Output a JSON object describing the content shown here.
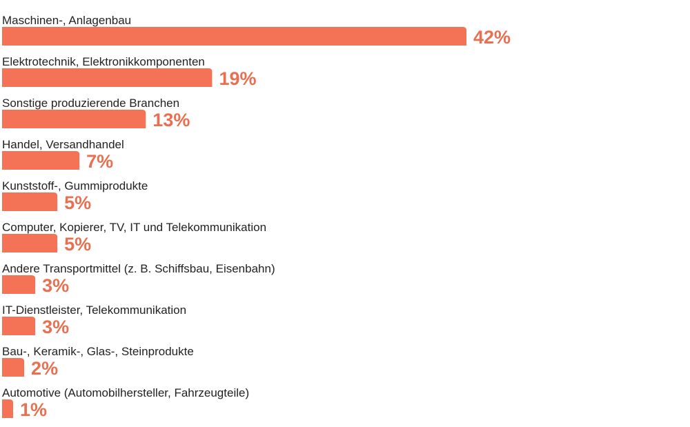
{
  "chart_data": {
    "type": "bar",
    "orientation": "horizontal",
    "categories": [
      "Maschinen-, Anlagenbau",
      "Elektrotechnik, Elektronikkomponenten",
      "Sonstige produzierende Branchen",
      "Handel, Versandhandel",
      "Kunststoff-, Gummiprodukte",
      "Computer, Kopierer, TV, IT und Telekommunikation",
      "Andere Transportmittel (z. B. Schiffsbau, Eisenbahn)",
      "IT-Dienstleister, Telekommunikation",
      "Bau-, Keramik-, Glas-, Steinprodukte",
      "Automotive (Automobilhersteller, Fahrzeugteile)"
    ],
    "values": [
      42,
      19,
      13,
      7,
      5,
      5,
      3,
      3,
      2,
      1
    ],
    "value_labels": [
      "42%",
      "19%",
      "13%",
      "7%",
      "5%",
      "5%",
      "3%",
      "3%",
      "2%",
      "1%"
    ],
    "unit": "%",
    "title": "",
    "xlabel": "",
    "ylabel": "",
    "xlim": [
      0,
      42
    ],
    "grid": false,
    "legend": "none",
    "colors": {
      "bar": "#f47356",
      "value_label": "#e87050",
      "category_label": "#222222",
      "background": "#ffffff"
    }
  }
}
